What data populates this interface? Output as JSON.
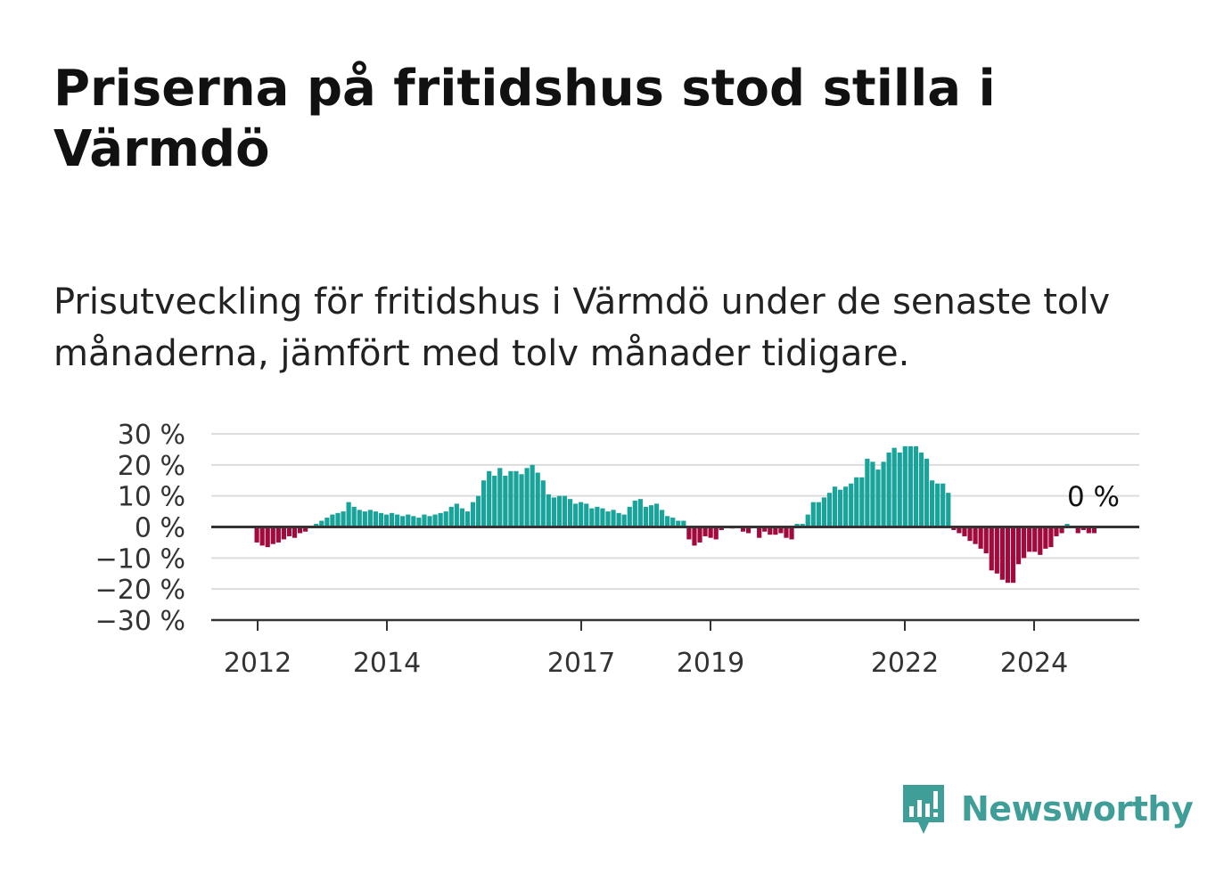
{
  "title": "Priserna på fritidshus stod stilla i Värmdö",
  "subtitle": "Prisutveckling för fritidshus i Värmdö under de senaste tolv månaderna, jämfört med tolv månader tidigare.",
  "brand": {
    "name": "Newsworthy",
    "color": "#3f9e98",
    "icon": "newsworthy-logo-icon"
  },
  "colors": {
    "positive": "#1aa39a",
    "negative": "#a00a3c",
    "gridline": "#dddddd",
    "axis": "#333333"
  },
  "chart_data": {
    "type": "bar",
    "ylim": [
      -30,
      30
    ],
    "yticks": [
      30,
      20,
      10,
      0,
      -10,
      -20,
      -30
    ],
    "ytick_labels": [
      "30 %",
      "20 %",
      "10 %",
      "0 %",
      "−10 %",
      "−20 %",
      "−30 %"
    ],
    "xtick_labels": [
      "2012",
      "2014",
      "2017",
      "2019",
      "2022",
      "2024"
    ],
    "end_label": "0 %",
    "grid": true,
    "series": [
      {
        "values": [
          -5,
          -6,
          -6.5,
          -5.5,
          -5,
          -4,
          -3,
          -3.5,
          -2,
          -1.5,
          0,
          1,
          2,
          3,
          4,
          4.5,
          5,
          8,
          6.5,
          5.5,
          5,
          5.5,
          5,
          4.5,
          4,
          4.5,
          4,
          3.5,
          4,
          3.5,
          3,
          4,
          3.5,
          4,
          4.5,
          5,
          6.5,
          7.5,
          6,
          5,
          8,
          10,
          15,
          18,
          16.5,
          19,
          16.5,
          18,
          18,
          17,
          19,
          20,
          17.5,
          15,
          10.5,
          9.5,
          10,
          10,
          9,
          7.5,
          8,
          7.5,
          6,
          6.5,
          6,
          5,
          5.5,
          4.5,
          4,
          6.5,
          8.5,
          9,
          6.5,
          7,
          7.5,
          5.5,
          3.5,
          3,
          2,
          2,
          -4,
          -6,
          -5,
          -3,
          -3.5,
          -4,
          -1,
          0,
          -0.5,
          0,
          -1.5,
          -2,
          0,
          -3.5,
          -1.5,
          -2.5,
          -2.5,
          -2,
          -3.5,
          -4,
          1,
          1,
          4,
          8,
          8,
          9.5,
          11,
          13,
          12,
          13,
          14,
          16,
          16,
          22,
          21,
          18.5,
          21,
          24,
          25.5,
          24,
          26,
          26,
          26,
          24,
          22,
          15,
          14,
          14,
          11,
          -1,
          -2,
          -3,
          -4.5,
          -5.5,
          -7,
          -8.5,
          -14,
          -15,
          -17,
          -18,
          -18,
          -12,
          -10,
          -8,
          -8,
          -9,
          -7,
          -6.5,
          -3,
          -2,
          1,
          0,
          -2,
          -1,
          -2,
          -2,
          0,
          0
        ]
      }
    ]
  }
}
